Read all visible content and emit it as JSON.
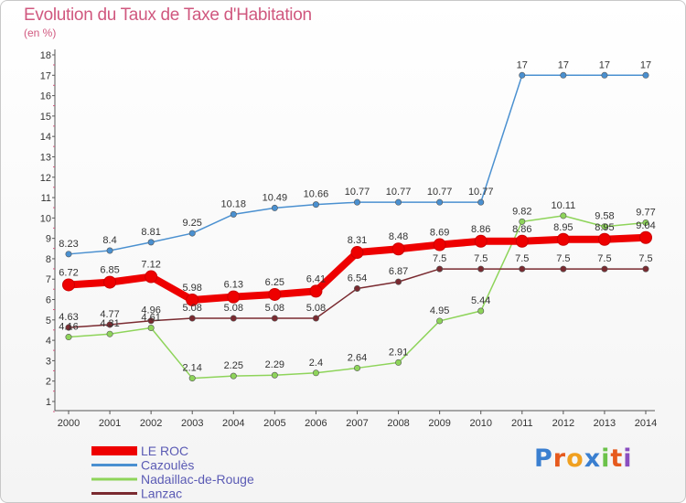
{
  "chart_data": {
    "type": "line",
    "title": "Evolution du Taux de Taxe d'Habitation",
    "unit_label": "(en %)",
    "xlabel": "",
    "ylabel": "",
    "x": [
      "2000",
      "2001",
      "2002",
      "2003",
      "2004",
      "2005",
      "2006",
      "2007",
      "2008",
      "2009",
      "2010",
      "2011",
      "2012",
      "2013",
      "2014"
    ],
    "ylim": [
      1,
      18
    ],
    "yticks": [
      1,
      2,
      3,
      4,
      5,
      6,
      7,
      8,
      9,
      10,
      11,
      12,
      13,
      14,
      15,
      16,
      17,
      18
    ],
    "grid": false,
    "legend": "bottom-left",
    "series": [
      {
        "name": "LE ROC",
        "color": "#ee0000",
        "values": [
          6.72,
          6.85,
          7.12,
          5.98,
          6.13,
          6.25,
          6.41,
          8.31,
          8.48,
          8.69,
          8.86,
          8.86,
          8.95,
          8.95,
          9.04
        ],
        "labels": [
          "6.72",
          "6.85",
          "7.12",
          "5.98",
          "6.13",
          "6.25",
          "6.41",
          "8.31",
          "8.48",
          "8.69",
          "8.86",
          "8.86",
          "8.95",
          "8.95",
          "9.04"
        ]
      },
      {
        "name": "Cazoulès",
        "color": "#4a90d0",
        "values": [
          8.23,
          8.4,
          8.81,
          9.25,
          10.18,
          10.49,
          10.66,
          10.77,
          10.77,
          10.77,
          10.77,
          17,
          17,
          17,
          17
        ],
        "labels": [
          "8.23",
          "8.4",
          "8.81",
          "9.25",
          "10.18",
          "10.49",
          "10.66",
          "10.77",
          "10.77",
          "10.77",
          "10.77",
          "17",
          "17",
          "17",
          "17"
        ]
      },
      {
        "name": "Nadaillac-de-Rouge",
        "color": "#8ed45a",
        "values": [
          4.16,
          4.31,
          4.61,
          2.14,
          2.25,
          2.29,
          2.4,
          2.64,
          2.91,
          4.95,
          5.44,
          9.82,
          10.11,
          9.58,
          9.77
        ],
        "labels": [
          "4.16",
          "4.31",
          "4.61",
          "2.14",
          "2.25",
          "2.29",
          "2.4",
          "2.64",
          "2.91",
          "4.95",
          "5.44",
          "9.82",
          "10.11",
          "9.58",
          "9.77"
        ]
      },
      {
        "name": "Lanzac",
        "color": "#7a2a30",
        "values": [
          4.63,
          4.77,
          4.96,
          5.08,
          5.08,
          5.08,
          5.08,
          6.54,
          6.87,
          7.5,
          7.5,
          7.5,
          7.5,
          7.5,
          7.5
        ],
        "labels": [
          "4.63",
          "4.77",
          "4.96",
          "5.08",
          "5.08",
          "5.08",
          "5.08",
          "6.54",
          "6.87",
          "7.5",
          "7.5",
          "7.5",
          "7.5",
          "7.5",
          "7.5"
        ]
      }
    ]
  },
  "brand": {
    "letters": [
      "P",
      "r",
      "o",
      "x",
      "i",
      "t",
      "i"
    ],
    "colors": [
      "#3a7fd0",
      "#e65a1e",
      "#f0a020",
      "#3a7fd0",
      "#6cc24a",
      "#e65a1e",
      "#8a4ec0"
    ]
  }
}
